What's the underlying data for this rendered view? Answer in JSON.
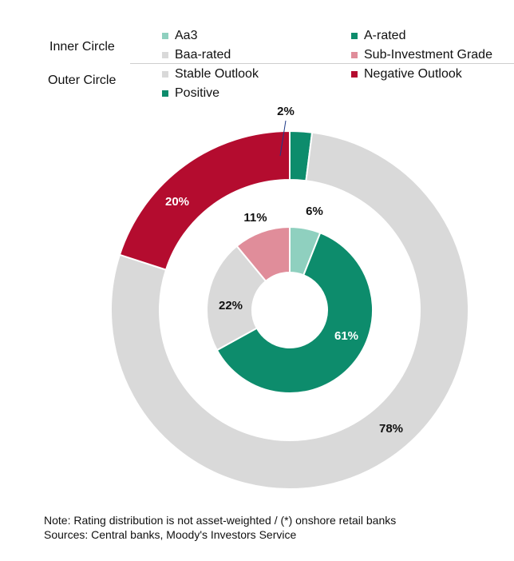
{
  "legend": {
    "inner_circle_label": "Inner Circle",
    "outer_circle_label": "Outer Circle",
    "items": [
      {
        "label": "Aa3",
        "color": "#8fd0bf"
      },
      {
        "label": "A-rated",
        "color": "#0d8c6c"
      },
      {
        "label": "Baa-rated",
        "color": "#d9d9d9"
      },
      {
        "label": "Sub-Investment Grade",
        "color": "#e08d9a"
      },
      {
        "label": "Stable Outlook",
        "color": "#d9d9d9"
      },
      {
        "label": "Negative Outlook",
        "color": "#b40c2f"
      },
      {
        "label": "Positive",
        "color": "#0d8c6c"
      }
    ]
  },
  "chart_data": {
    "type": "pie",
    "variant": "nested-donut",
    "rings": [
      {
        "name": "Outer Circle",
        "slices": [
          {
            "label": "Positive",
            "value": 2,
            "value_label": "2%",
            "color": "#0d8c6c"
          },
          {
            "label": "Stable Outlook",
            "value": 78,
            "value_label": "78%",
            "color": "#d9d9d9"
          },
          {
            "label": "Negative Outlook",
            "value": 20,
            "value_label": "20%",
            "color": "#b40c2f"
          }
        ]
      },
      {
        "name": "Inner Circle",
        "slices": [
          {
            "label": "Aa3",
            "value": 6,
            "value_label": "6%",
            "color": "#8fd0bf"
          },
          {
            "label": "A-rated",
            "value": 61,
            "value_label": "61%",
            "color": "#0d8c6c"
          },
          {
            "label": "Baa-rated",
            "value": 22,
            "value_label": "22%",
            "color": "#d9d9d9"
          },
          {
            "label": "Sub-Investment Grade",
            "value": 11,
            "value_label": "11%",
            "color": "#e08d9a"
          }
        ]
      }
    ],
    "legend_position": "top"
  },
  "notes": {
    "note": "Note: Rating distribution is not asset-weighted / (*) onshore retail banks",
    "sources": "Sources: Central banks,  Moody's Investors Service"
  }
}
